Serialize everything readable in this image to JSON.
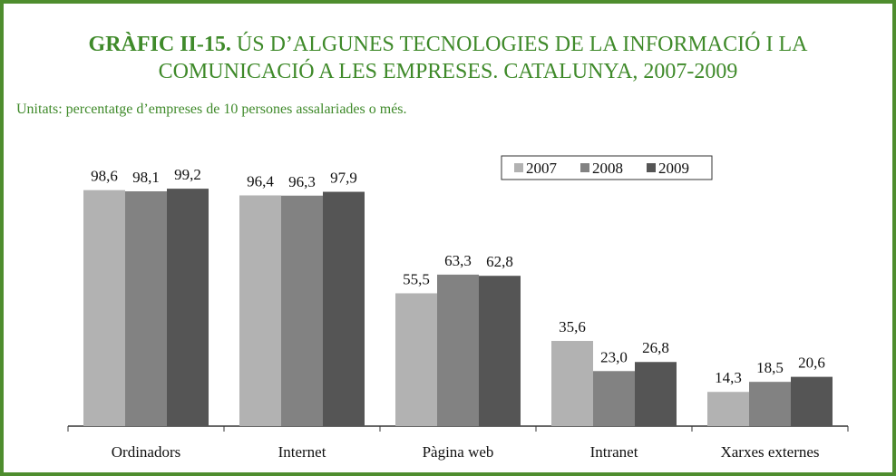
{
  "chart_data": {
    "type": "bar",
    "title_label": "GRÀFIC II-15.",
    "title": "ÚS D’ALGUNES TECNOLOGIES DE LA INFORMACIÓ I LA COMUNICACIÓ A LES EMPRESES. CATALUNYA, 2007-2009",
    "subtitle": "Unitats: percentatge d’empreses de 10 persones assalariades o més.",
    "categories": [
      "Ordinadors",
      "Internet",
      "Pàgina web",
      "Intranet",
      "Xarxes externes"
    ],
    "series": [
      {
        "name": "2007",
        "color": "#b2b2b2",
        "values": [
          98.6,
          96.4,
          55.5,
          35.6,
          14.3
        ],
        "value_labels": [
          "98,6",
          "96,4",
          "55,5",
          "35,6",
          "14,3"
        ]
      },
      {
        "name": "2008",
        "color": "#828282",
        "values": [
          98.1,
          96.3,
          63.3,
          23.0,
          18.5
        ],
        "value_labels": [
          "98,1",
          "96,3",
          "63,3",
          "23,0",
          "18,5"
        ]
      },
      {
        "name": "2009",
        "color": "#555555",
        "values": [
          99.2,
          97.9,
          62.8,
          26.8,
          20.6
        ],
        "value_labels": [
          "99,2",
          "97,9",
          "62,8",
          "26,8",
          "20,6"
        ]
      }
    ],
    "ylim": [
      0,
      100
    ],
    "legend": "top-right"
  }
}
